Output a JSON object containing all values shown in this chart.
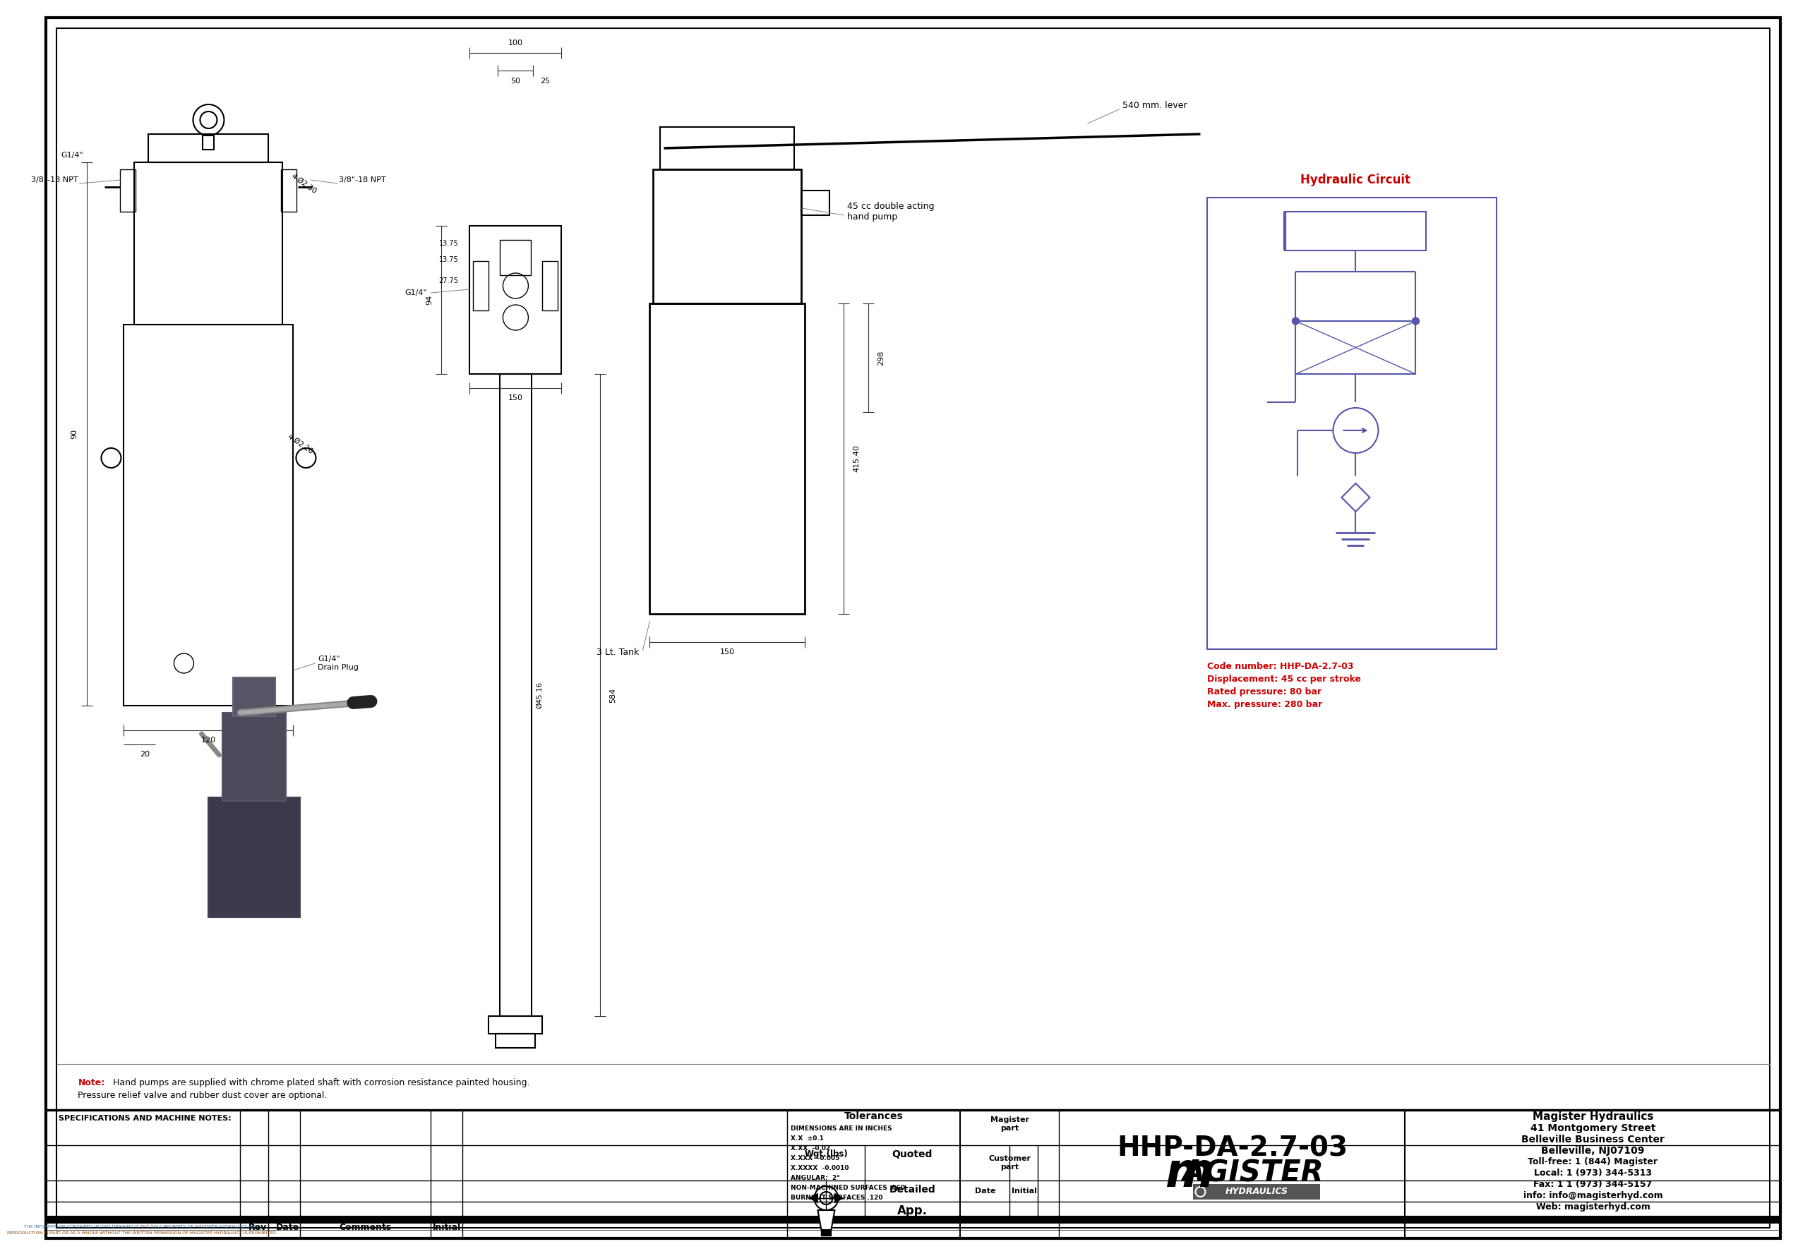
{
  "title": "HHP-DA-2.7-03",
  "company_name": "Magister Hydraulics",
  "company_address1": "41 Montgomery Street",
  "company_address2": "Belleville Business Center",
  "company_address3": "Belleville, NJ07109",
  "company_phone1": "Toll-free: 1 (844) Magister",
  "company_phone2": "Local: 1 (973) 344-5313",
  "company_fax": "Fax: 1 1 (973) 344-5157",
  "company_email": "info: info@magisterhyd.com",
  "company_web": "Web: magisterhyd.com",
  "magister_part": "Magister\npart",
  "customer_part": "Customer\npart",
  "tolerances_title": "Tolerances",
  "tolerances_lines": [
    "DIMENSIONS ARE IN INCHES",
    "X.X  ±0.1",
    "X.XX  -0.02",
    "X.XXX  -0.005",
    "X.XXXX  -0.0010",
    "ANGULAR:  2°",
    "NON-MACHINED SURFACES .060",
    "BURNOUT SURFACES .120"
  ],
  "specs_label": "SPECIFICATIONS AND MACHINE NOTES:",
  "note_line1": "Hand pumps are supplied with chrome plated shaft with corrosion resistance painted housing.",
  "note_line2": "Pressure relief valve and rubber dust cover are optional.",
  "code_number": "Code number: HHP-DA-2.7-03",
  "displacement": "Displacement: 45 cc per stroke",
  "rated_pressure": "Rated pressure: 80 bar",
  "max_pressure": "Max. pressure: 280 bar",
  "hydraulic_circuit_title": "Hydraulic Circuit",
  "lever_label": "540 mm. lever",
  "pump_label": "45 cc double acting\nhand pump",
  "tank_label": "3 Lt. Tank",
  "dim_120": "120",
  "dim_90": "90",
  "dim_20": "20",
  "dim_100": "100",
  "dim_50": "50",
  "dim_25": "25",
  "dim_13_75a": "13.75",
  "dim_13_75b": "13.75",
  "dim_27_75": "27.75",
  "dim_150_mid": "150",
  "dim_584": "584",
  "dim_415_40": "415.40",
  "dim_298": "298",
  "dim_150_rv": "150",
  "dim_94": "94",
  "g14_top": "G1/4\"",
  "g14_drain": "G1/4\"\nDrain Plug",
  "thread_3_8_1": "3/8\"-18 NPT",
  "thread_3_8_2": "3/8\"-18 NPT",
  "dim_4_9_30": "4-Ø2.30",
  "dim_4_9_20": "4-Ø2.20",
  "dim_phi_45_16": "Ø45.16",
  "rev_label": "Rev",
  "date_label": "Date",
  "comments_label": "Comments",
  "initial_label": "Initial",
  "wgt_label": "Wgt.(lbs)",
  "quoted_label": "Quoted",
  "detailed_label": "Detailed",
  "app_label": "App.",
  "date_label2": "Date",
  "initial_label2": "Initial",
  "bg_color": "#ffffff",
  "red_color": "#cc0000",
  "circuit_color": "#5555aa",
  "dim_color": "#333333",
  "photo_body": "#3a3a4a",
  "photo_head": "#4a4a5a",
  "photo_lever": "#888888",
  "photo_grip": "#222222",
  "bottom_bar_text": "THE INFORMATION CONTAINED IN THIS DRAWING IS THE SOLE PROPERTY OF MAGISTER HYDRAULICS ANY REPRODUCTION IN PART OR AS A WHOLE WITHOUT THE WRITTEN PERMISSION OF MAGISTER HYDRAULICS IS PROHIBITED"
}
